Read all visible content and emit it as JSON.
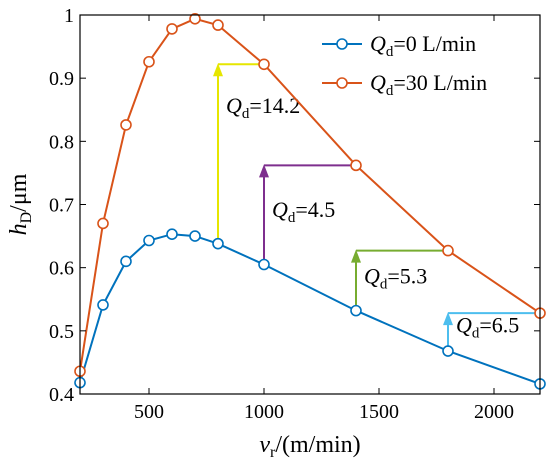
{
  "chart_data": {
    "type": "line",
    "xlabel": {
      "var": "v",
      "sub": "r",
      "rest": "/(m/min)"
    },
    "ylabel": {
      "var": "h",
      "sub": "D",
      "rest": "/μm"
    },
    "xlim": [
      200,
      2200
    ],
    "ylim": [
      0.4,
      1.0
    ],
    "xticks": [
      500,
      1000,
      1500,
      2000
    ],
    "yticks": [
      0.4,
      0.5,
      0.6,
      0.7,
      0.8,
      0.9,
      1.0
    ],
    "ytick_labels": [
      "0.4",
      "0.5",
      "0.6",
      "0.7",
      "0.8",
      "0.9",
      "1"
    ],
    "grid": false,
    "legend_position": "top-right",
    "series": [
      {
        "name": {
          "var": "Q",
          "sub": "d",
          "rest": "=0  L/min"
        },
        "color": "#0072BD",
        "x": [
          200,
          300,
          400,
          500,
          600,
          700,
          800,
          1000,
          1400,
          1800,
          2200
        ],
        "y": [
          0.418,
          0.541,
          0.61,
          0.643,
          0.653,
          0.65,
          0.638,
          0.605,
          0.532,
          0.468,
          0.416
        ]
      },
      {
        "name": {
          "var": "Q",
          "sub": "d",
          "rest": "=30 L/min"
        },
        "color": "#D95319",
        "x": [
          200,
          300,
          400,
          500,
          600,
          700,
          800,
          1000,
          1400,
          1800,
          2200
        ],
        "y": [
          0.436,
          0.67,
          0.826,
          0.926,
          0.978,
          0.994,
          0.984,
          0.922,
          0.762,
          0.627,
          0.528
        ]
      }
    ],
    "annotations": [
      {
        "x": 800,
        "from": 0.638,
        "to": 0.922,
        "h_to_x": 1000,
        "color": "#E6E600",
        "var": "Q",
        "sub": "d",
        "rest": "=14.2",
        "label_x": 800,
        "label_y": 0.845
      },
      {
        "x": 1000,
        "from": 0.605,
        "to": 0.762,
        "h_to_x": 1400,
        "color": "#7E2F8E",
        "var": "Q",
        "sub": "d",
        "rest": "=4.5",
        "label_x": 1000,
        "label_y": 0.68
      },
      {
        "x": 1400,
        "from": 0.532,
        "to": 0.627,
        "h_to_x": 1800,
        "color": "#77AC30",
        "var": "Q",
        "sub": "d",
        "rest": "=5.3",
        "label_x": 1400,
        "label_y": 0.575
      },
      {
        "x": 1800,
        "from": 0.468,
        "to": 0.528,
        "h_to_x": 2200,
        "color": "#4DBEEE",
        "var": "Q",
        "sub": "d",
        "rest": "=6.5",
        "label_x": 1800,
        "label_y": 0.497
      }
    ]
  }
}
